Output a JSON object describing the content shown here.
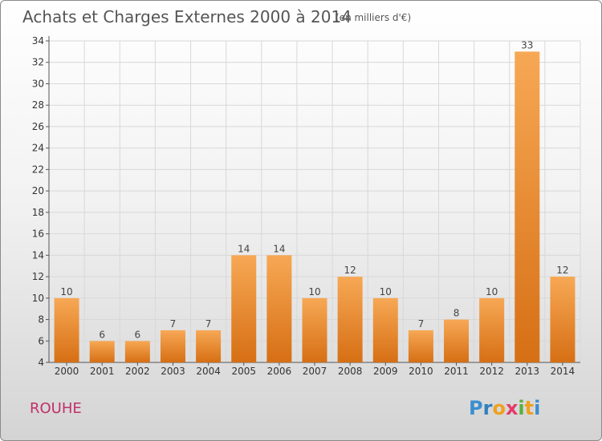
{
  "header": {
    "title": "Achats et Charges Externes 2000 à 2014",
    "unit": "(en milliers d'€)"
  },
  "footer": {
    "place": "ROUHE",
    "logo": [
      "P",
      "r",
      "o",
      "x",
      "i",
      "t",
      "i"
    ],
    "logo_colors": [
      "#3a8fd0",
      "#2f7fc0",
      "#f0a020",
      "#e53a6a",
      "#5ab040",
      "#f0a020",
      "#3a8fd0"
    ]
  },
  "colors": {
    "bar_top": "#f7a855",
    "bar_bottom": "#d66f14",
    "grid": "#d8d8d8",
    "axis": "#555555"
  },
  "chart_data": {
    "type": "bar",
    "title": "Achats et Charges Externes 2000 à 2014",
    "subtitle": "(en milliers d'€)",
    "categories": [
      "2000",
      "2001",
      "2002",
      "2003",
      "2004",
      "2005",
      "2006",
      "2007",
      "2008",
      "2009",
      "2010",
      "2011",
      "2012",
      "2013",
      "2014"
    ],
    "values": [
      10,
      6,
      6,
      7,
      7,
      14,
      14,
      10,
      12,
      10,
      7,
      8,
      10,
      33,
      12
    ],
    "ylim": [
      4,
      34
    ],
    "yticks": [
      4,
      6,
      8,
      10,
      12,
      14,
      16,
      18,
      20,
      22,
      24,
      26,
      28,
      30,
      32,
      34
    ],
    "xlabel": "",
    "ylabel": "",
    "grid": true,
    "data_labels": true
  }
}
